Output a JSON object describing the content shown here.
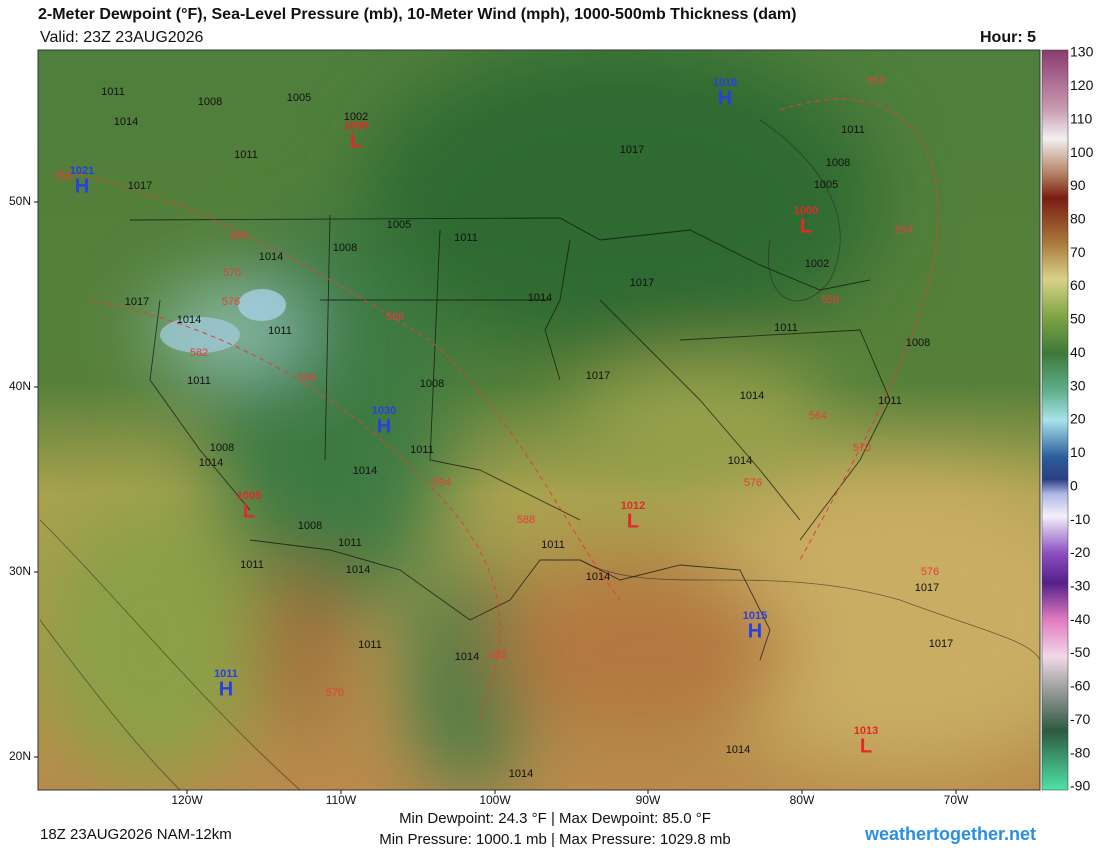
{
  "header": {
    "title": "2-Meter Dewpoint (°F), Sea-Level Pressure (mb), 10-Meter Wind (mph), 1000-500mb Thickness (dam)",
    "valid": "Valid: 23Z 23AUG2026",
    "hour": "Hour: 5"
  },
  "colorbar": {
    "labels": [
      130,
      120,
      110,
      100,
      90,
      80,
      70,
      60,
      50,
      40,
      30,
      20,
      10,
      0,
      -10,
      -20,
      -30,
      -40,
      -50,
      -60,
      -70,
      -80,
      -90
    ]
  },
  "map": {
    "lat_labels": [
      "50N",
      "40N",
      "30N",
      "20N"
    ],
    "lon_labels": [
      "120W",
      "110W",
      "100W",
      "90W",
      "80W",
      "70W"
    ],
    "pressure_centers": [
      {
        "type": "H",
        "value": "1021"
      },
      {
        "type": "L",
        "value": "1000"
      },
      {
        "type": "H",
        "value": "1018"
      },
      {
        "type": "L",
        "value": "1000"
      },
      {
        "type": "H",
        "value": "1030"
      },
      {
        "type": "L",
        "value": "1005"
      },
      {
        "type": "L",
        "value": "1012"
      },
      {
        "type": "H",
        "value": "1015"
      },
      {
        "type": "H",
        "value": "1011"
      },
      {
        "type": "L",
        "value": "1013"
      }
    ],
    "isobar_labels": [
      "1011",
      "1008",
      "1005",
      "1014",
      "1002",
      "1017",
      "1011",
      "1017",
      "1011",
      "1008",
      "1005",
      "1005",
      "1011",
      "1008",
      "1014",
      "1014",
      "1017",
      "1002",
      "1011",
      "1008",
      "1017",
      "1014",
      "1011",
      "1017",
      "1014",
      "1011",
      "1014",
      "1011",
      "1014",
      "1017",
      "1017",
      "1014",
      "1011",
      "1008",
      "1008",
      "1014",
      "1008",
      "1011",
      "1014",
      "1014",
      "1011",
      "1014",
      "1011",
      "1014",
      "1011"
    ],
    "thickness_labels": [
      "564",
      "570",
      "576",
      "582",
      "588",
      "588",
      "594",
      "588",
      "582",
      "570",
      "564",
      "570",
      "576",
      "576",
      "558",
      "564",
      "558",
      "558"
    ]
  },
  "footer": {
    "run": "18Z 23AUG2026 NAM-12km",
    "line1": "Min Dewpoint: 24.3 °F | Max Dewpoint: 85.0 °F",
    "line2": "Min Pressure: 1000.1 mb | Max Pressure: 1029.8 mb",
    "site": "weathertogether.net"
  }
}
